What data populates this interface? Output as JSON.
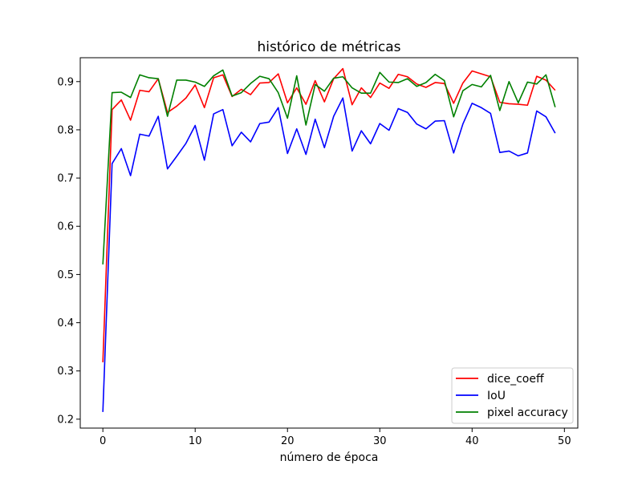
{
  "chart_data": {
    "type": "line",
    "title": "histórico de métricas",
    "xlabel": "número de época",
    "ylabel": "",
    "xlim": [
      -2.45,
      51.45
    ],
    "ylim": [
      0.1815,
      0.9495
    ],
    "xticks": [
      "0",
      "10",
      "20",
      "30",
      "40",
      "50"
    ],
    "xtick_values": [
      0,
      10,
      20,
      30,
      40,
      50
    ],
    "yticks": [
      "0.2",
      "0.3",
      "0.4",
      "0.5",
      "0.6",
      "0.7",
      "0.8",
      "0.9"
    ],
    "ytick_values": [
      0.2,
      0.3,
      0.4,
      0.5,
      0.6,
      0.7,
      0.8,
      0.9
    ],
    "grid": false,
    "legend_position": "lower-right",
    "x": [
      0,
      1,
      2,
      3,
      4,
      5,
      6,
      7,
      8,
      9,
      10,
      11,
      12,
      13,
      14,
      15,
      16,
      17,
      18,
      19,
      20,
      21,
      22,
      23,
      24,
      25,
      26,
      27,
      28,
      29,
      30,
      31,
      32,
      33,
      34,
      35,
      36,
      37,
      38,
      39,
      40,
      41,
      42,
      43,
      44,
      45,
      46,
      47,
      48,
      49
    ],
    "series": [
      {
        "name": "dice_coeff",
        "color": "#ff0000",
        "values": [
          0.318,
          0.842,
          0.862,
          0.82,
          0.882,
          0.879,
          0.906,
          0.836,
          0.849,
          0.866,
          0.893,
          0.846,
          0.908,
          0.914,
          0.869,
          0.884,
          0.873,
          0.897,
          0.898,
          0.916,
          0.856,
          0.887,
          0.853,
          0.902,
          0.858,
          0.906,
          0.927,
          0.852,
          0.887,
          0.867,
          0.897,
          0.886,
          0.915,
          0.91,
          0.895,
          0.888,
          0.898,
          0.896,
          0.855,
          0.897,
          0.922,
          0.916,
          0.91,
          0.857,
          0.854,
          0.853,
          0.851,
          0.911,
          0.903,
          0.882
        ]
      },
      {
        "name": "IoU",
        "color": "#0000ff",
        "values": [
          0.215,
          0.73,
          0.761,
          0.705,
          0.791,
          0.787,
          0.828,
          0.719,
          0.745,
          0.772,
          0.809,
          0.737,
          0.833,
          0.842,
          0.767,
          0.795,
          0.775,
          0.813,
          0.816,
          0.846,
          0.751,
          0.802,
          0.749,
          0.822,
          0.763,
          0.828,
          0.866,
          0.756,
          0.798,
          0.771,
          0.813,
          0.799,
          0.844,
          0.836,
          0.812,
          0.802,
          0.818,
          0.819,
          0.752,
          0.812,
          0.855,
          0.846,
          0.834,
          0.753,
          0.756,
          0.746,
          0.752,
          0.839,
          0.827,
          0.793
        ]
      },
      {
        "name": "pixel accuracy",
        "color": "#008000",
        "values": [
          0.521,
          0.877,
          0.878,
          0.867,
          0.914,
          0.908,
          0.906,
          0.828,
          0.903,
          0.903,
          0.899,
          0.89,
          0.912,
          0.924,
          0.87,
          0.877,
          0.896,
          0.911,
          0.906,
          0.877,
          0.824,
          0.912,
          0.81,
          0.894,
          0.88,
          0.907,
          0.91,
          0.887,
          0.876,
          0.876,
          0.919,
          0.899,
          0.898,
          0.906,
          0.89,
          0.898,
          0.915,
          0.902,
          0.827,
          0.881,
          0.894,
          0.889,
          0.913,
          0.84,
          0.9,
          0.856,
          0.899,
          0.895,
          0.914,
          0.847
        ]
      }
    ]
  }
}
